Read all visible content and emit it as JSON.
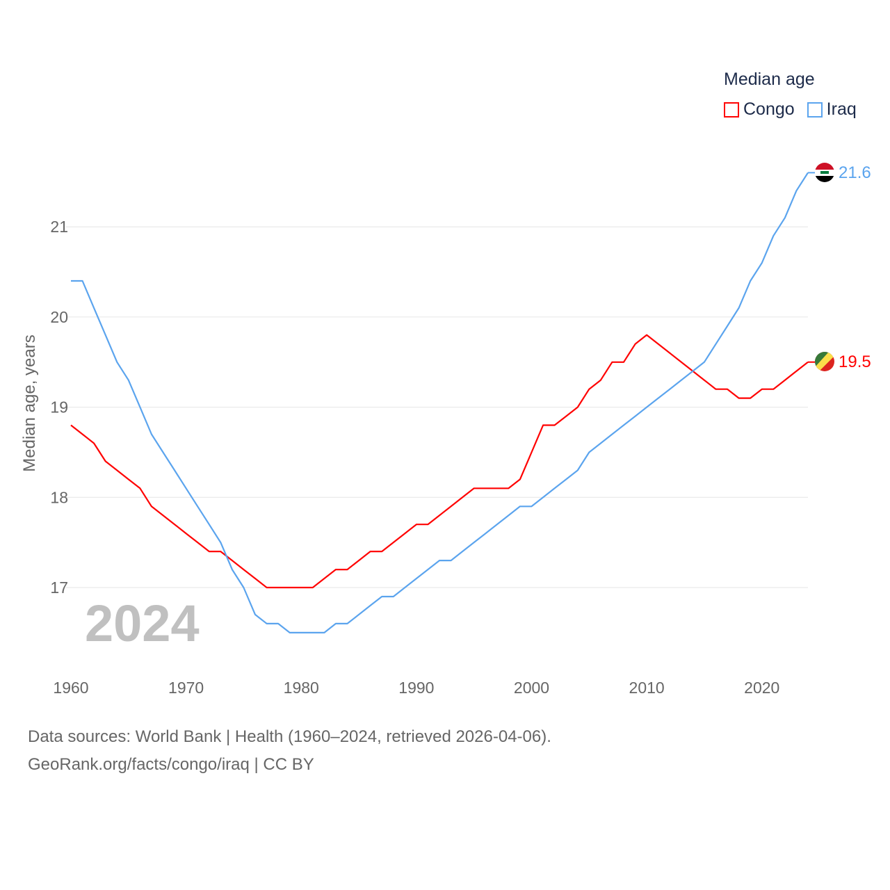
{
  "legend": {
    "title": "Median age",
    "items": [
      {
        "name": "Congo",
        "color": "#ff0000"
      },
      {
        "name": "Iraq",
        "color": "#5ba4ee"
      }
    ]
  },
  "year_label": "2024",
  "footer": {
    "line1": "Data sources: World Bank | Health (1960–2024, retrieved 2026-04-06).",
    "line2": "GeoRank.org/facts/congo/iraq | CC BY"
  },
  "chart_data": {
    "type": "line",
    "title": "Median age",
    "xlabel": "",
    "ylabel": "Median age, years",
    "xlim": [
      1960,
      2024
    ],
    "ylim": [
      16.2,
      21.9
    ],
    "xticks": [
      "1960",
      "1970",
      "1980",
      "1990",
      "2000",
      "2010",
      "2020"
    ],
    "yticks": [
      "17",
      "18",
      "19",
      "20",
      "21"
    ],
    "grid": true,
    "legend_position": "top-right",
    "x_start": 1960,
    "series": [
      {
        "name": "Congo",
        "color": "#ff0000",
        "end_label": "19.5",
        "values": [
          18.8,
          18.7,
          18.6,
          18.4,
          18.3,
          18.2,
          18.1,
          17.9,
          17.8,
          17.7,
          17.6,
          17.5,
          17.4,
          17.4,
          17.3,
          17.2,
          17.1,
          17.0,
          17.0,
          17.0,
          17.0,
          17.0,
          17.1,
          17.2,
          17.2,
          17.3,
          17.4,
          17.4,
          17.5,
          17.6,
          17.7,
          17.7,
          17.8,
          17.9,
          18.0,
          18.1,
          18.1,
          18.1,
          18.1,
          18.2,
          18.5,
          18.8,
          18.8,
          18.9,
          19.0,
          19.2,
          19.3,
          19.5,
          19.5,
          19.7,
          19.8,
          19.7,
          19.6,
          19.5,
          19.4,
          19.3,
          19.2,
          19.2,
          19.1,
          19.1,
          19.2,
          19.2,
          19.3,
          19.4,
          19.5
        ]
      },
      {
        "name": "Iraq",
        "color": "#5ba4ee",
        "end_label": "21.6",
        "values": [
          20.4,
          20.4,
          20.1,
          19.8,
          19.5,
          19.3,
          19.0,
          18.7,
          18.5,
          18.3,
          18.1,
          17.9,
          17.7,
          17.5,
          17.2,
          17.0,
          16.7,
          16.6,
          16.6,
          16.5,
          16.5,
          16.5,
          16.5,
          16.6,
          16.6,
          16.7,
          16.8,
          16.9,
          16.9,
          17.0,
          17.1,
          17.2,
          17.3,
          17.3,
          17.4,
          17.5,
          17.6,
          17.7,
          17.8,
          17.9,
          17.9,
          18.0,
          18.1,
          18.2,
          18.3,
          18.5,
          18.6,
          18.7,
          18.8,
          18.9,
          19.0,
          19.1,
          19.2,
          19.3,
          19.4,
          19.5,
          19.7,
          19.9,
          20.1,
          20.4,
          20.6,
          20.9,
          21.1,
          21.4,
          21.6
        ]
      }
    ]
  }
}
